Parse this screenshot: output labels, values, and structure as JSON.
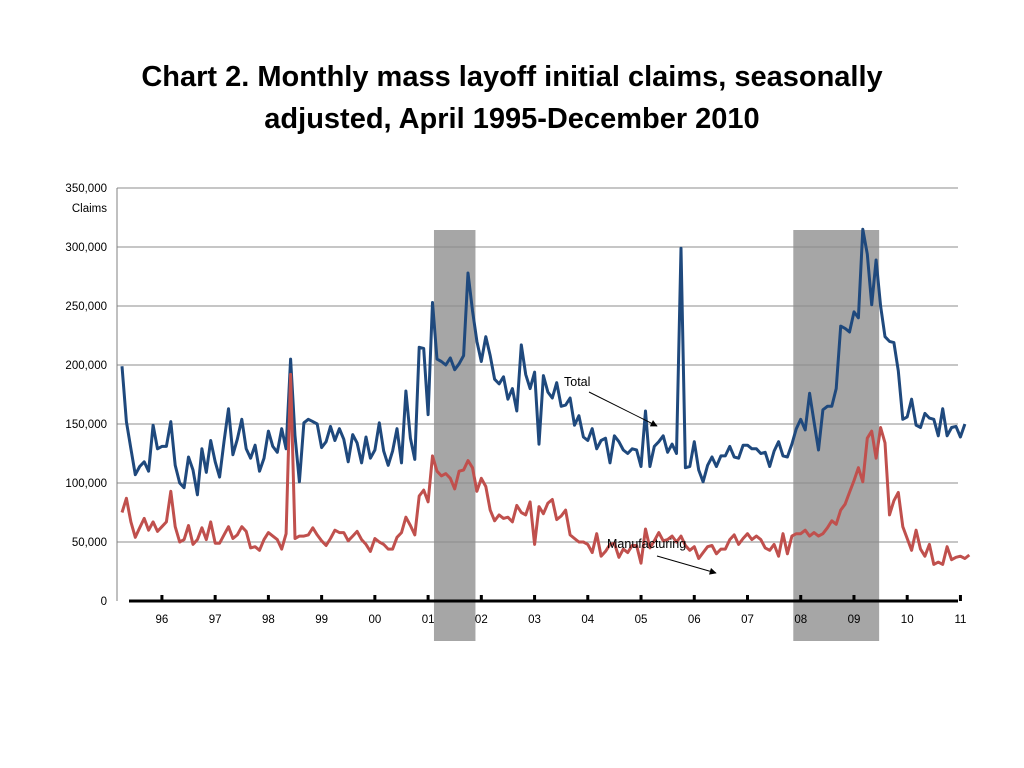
{
  "slide": {
    "title_line1": "Chart 2.  Monthly mass layoff initial claims, seasonally",
    "title_line2": "adjusted, April 1995-December 2010"
  },
  "colors": {
    "total": "#1f497d",
    "manufacturing": "#c0504d",
    "recession": "#a6a6a6",
    "grid": "#8c8c8c"
  },
  "chart_data": {
    "type": "line",
    "title": "Chart 2.  Monthly mass layoff initial claims, seasonally adjusted, April 1995-December 2010",
    "ylabel": "Claims",
    "xlabel": "",
    "ylim": [
      0,
      350000
    ],
    "y_ticks": [
      0,
      50000,
      100000,
      150000,
      200000,
      250000,
      300000,
      350000
    ],
    "y_tick_labels": [
      "0",
      "50,000",
      "100,000",
      "150,000",
      "200,000",
      "250,000",
      "300,000",
      "350,000"
    ],
    "x_tick_labels": [
      "96",
      "97",
      "98",
      "99",
      "00",
      "01",
      "02",
      "03",
      "04",
      "05",
      "06",
      "07",
      "08",
      "09",
      "10",
      "11"
    ],
    "x_start": "1995-04",
    "x_end": "2010-12",
    "grid": true,
    "recessions": [
      {
        "start": "2001-03",
        "end": "2001-11"
      },
      {
        "start": "2007-12",
        "end": "2009-06"
      }
    ],
    "annotations": [
      {
        "text": "Total",
        "series": "Total"
      },
      {
        "text": "Manufacturing",
        "series": "Manufacturing"
      }
    ],
    "series": [
      {
        "name": "Total",
        "values": [
          199000,
          152000,
          129000,
          107000,
          114000,
          118000,
          110000,
          149000,
          129000,
          131000,
          131000,
          152000,
          115000,
          100000,
          96000,
          122000,
          111000,
          90000,
          129000,
          109000,
          136000,
          118000,
          105000,
          135000,
          163000,
          124000,
          137000,
          154000,
          129000,
          121000,
          132000,
          110000,
          121000,
          144000,
          131000,
          126000,
          146000,
          129000,
          205000,
          140000,
          101000,
          151000,
          154000,
          152000,
          150000,
          130000,
          135000,
          148000,
          136000,
          146000,
          137000,
          118000,
          141000,
          134000,
          117000,
          139000,
          121000,
          128000,
          151000,
          127000,
          115000,
          127000,
          146000,
          117000,
          178000,
          138000,
          120000,
          215000,
          214000,
          158000,
          253000,
          205000,
          203000,
          200000,
          206000,
          196000,
          201000,
          208000,
          278000,
          246000,
          220000,
          203000,
          224000,
          208000,
          188000,
          184000,
          190000,
          171000,
          180000,
          161000,
          217000,
          192000,
          180000,
          194000,
          133000,
          191000,
          177000,
          172000,
          185000,
          165000,
          166000,
          172000,
          149000,
          157000,
          139000,
          136000,
          146000,
          129000,
          136000,
          138000,
          117000,
          140000,
          135000,
          128000,
          125000,
          129000,
          128000,
          114000,
          161000,
          114000,
          131000,
          135000,
          140000,
          126000,
          133000,
          125000,
          299000,
          113000,
          114000,
          135000,
          111000,
          101000,
          115000,
          122000,
          114000,
          123000,
          123000,
          131000,
          122000,
          121000,
          132000,
          132000,
          129000,
          129000,
          125000,
          126000,
          114000,
          127000,
          135000,
          123000,
          122000,
          133000,
          146000,
          154000,
          145000,
          176000,
          152000,
          128000,
          162000,
          165000,
          165000,
          180000,
          233000,
          231000,
          228000,
          245000,
          240000,
          315000,
          294000,
          251000,
          289000,
          250000,
          224000,
          220000,
          219000,
          195000,
          154000,
          156000,
          171000,
          149000,
          147000,
          159000,
          155000,
          154000,
          140000,
          163000,
          140000,
          147000,
          148000,
          139000,
          150000
        ]
      },
      {
        "name": "Manufacturing",
        "values": [
          75000,
          87000,
          67000,
          54000,
          62000,
          70000,
          60000,
          67000,
          59000,
          63000,
          67000,
          93000,
          63000,
          50000,
          52000,
          64000,
          48000,
          52000,
          62000,
          52000,
          67000,
          49000,
          49000,
          56000,
          63000,
          53000,
          56000,
          63000,
          59000,
          45000,
          46000,
          43000,
          52000,
          58000,
          55000,
          52000,
          44000,
          57000,
          192000,
          53000,
          55000,
          55000,
          56000,
          62000,
          56000,
          51000,
          47000,
          53000,
          60000,
          58000,
          58000,
          51000,
          55000,
          59000,
          52000,
          48000,
          42000,
          53000,
          50000,
          48000,
          44000,
          44000,
          54000,
          58000,
          71000,
          64000,
          56000,
          89000,
          94000,
          84000,
          123000,
          110000,
          106000,
          108000,
          104000,
          95000,
          110000,
          111000,
          119000,
          113000,
          93000,
          104000,
          97000,
          77000,
          68000,
          73000,
          70000,
          71000,
          67000,
          81000,
          75000,
          73000,
          84000,
          48000,
          80000,
          74000,
          83000,
          86000,
          69000,
          72000,
          77000,
          56000,
          53000,
          50000,
          50000,
          48000,
          41000,
          57000,
          38000,
          42000,
          48000,
          49000,
          37000,
          44000,
          41000,
          47000,
          47000,
          32000,
          61000,
          45000,
          51000,
          58000,
          51000,
          52000,
          55000,
          50000,
          55000,
          47000,
          43000,
          46000,
          36000,
          41000,
          46000,
          47000,
          40000,
          44000,
          44000,
          52000,
          56000,
          48000,
          53000,
          57000,
          52000,
          55000,
          52000,
          45000,
          43000,
          48000,
          38000,
          57000,
          40000,
          55000,
          57000,
          57000,
          60000,
          55000,
          58000,
          55000,
          57000,
          62000,
          68000,
          65000,
          77000,
          82000,
          92000,
          102000,
          113000,
          101000,
          138000,
          144000,
          121000,
          147000,
          134000,
          73000,
          85000,
          92000,
          63000,
          53000,
          43000,
          60000,
          44000,
          38000,
          48000,
          31000,
          33000,
          31000,
          46000,
          35000,
          37000,
          38000,
          36000,
          39000
        ]
      }
    ]
  }
}
